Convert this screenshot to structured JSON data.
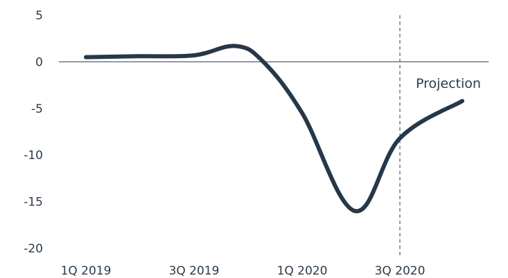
{
  "chart_data": {
    "type": "line",
    "title": "",
    "xlabel": "",
    "ylabel": "",
    "ylim": [
      -20,
      5
    ],
    "yticks": [
      5,
      0,
      -5,
      -10,
      -15,
      -20
    ],
    "xticks": [
      "1Q 2019",
      "3Q 2019",
      "1Q 2020",
      "3Q 2020"
    ],
    "grid": false,
    "line_color": "#263748",
    "series": [
      {
        "x": [
          "1Q 2019",
          "2Q 2019",
          "3Q 2019",
          "Mid 3Q-4Q 2019",
          "4Q 2019",
          "1Q 2020",
          "2Q 2020",
          "3Q 2020",
          "4Q 2020"
        ],
        "values": [
          0.5,
          0.6,
          0.7,
          1.7,
          0.0,
          -5.5,
          -16.0,
          -8.2,
          -4.2
        ]
      }
    ],
    "projection_start": "3Q 2020",
    "annotations": [
      {
        "text": "Projection",
        "at": "3Q 2020"
      }
    ]
  }
}
